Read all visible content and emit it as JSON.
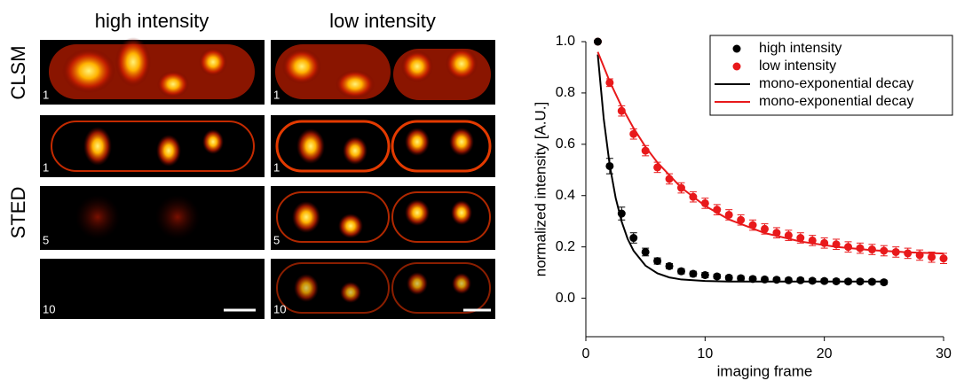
{
  "image_panel": {
    "columns": [
      "high intensity",
      "low intensity"
    ],
    "rows": [
      "CLSM",
      "STED"
    ],
    "frame_labels": [
      [
        "1",
        "1"
      ],
      [
        "1",
        "1"
      ],
      [
        "5",
        "5"
      ],
      [
        "10",
        "10"
      ]
    ]
  },
  "chart_data": {
    "type": "scatter",
    "xlabel": "imaging frame",
    "ylabel": "normalized intensity [A.U.]",
    "xlim": [
      0,
      30
    ],
    "ylim": [
      -0.15,
      1.0
    ],
    "xticks": [
      0,
      10,
      20,
      30
    ],
    "yticks": [
      {
        "value": 0,
        "label": "0.0"
      },
      {
        "value": 0.2,
        "label": "0.2"
      },
      {
        "value": 0.4,
        "label": "0.4"
      },
      {
        "value": 0.6,
        "label": "0.6"
      },
      {
        "value": 0.8,
        "label": "0.8"
      },
      {
        "value": 1,
        "label": "1.0"
      }
    ],
    "legend": "upper right",
    "series": [
      {
        "name": "high intensity",
        "color": "#000000",
        "mode": "markers",
        "x": [
          1,
          2,
          3,
          4,
          5,
          6,
          7,
          8,
          9,
          10,
          11,
          12,
          13,
          14,
          15,
          16,
          17,
          18,
          19,
          20,
          21,
          22,
          23,
          24,
          25
        ],
        "values": [
          1.0,
          0.515,
          0.33,
          0.235,
          0.18,
          0.145,
          0.125,
          0.105,
          0.095,
          0.09,
          0.085,
          0.08,
          0.078,
          0.075,
          0.073,
          0.072,
          0.07,
          0.07,
          0.068,
          0.067,
          0.066,
          0.065,
          0.065,
          0.064,
          0.062
        ],
        "errors": [
          0.0,
          0.03,
          0.025,
          0.02,
          0.015,
          0.012,
          0.01,
          0.01,
          0.01,
          0.01,
          0.008,
          0.008,
          0.008,
          0.008,
          0.008,
          0.008,
          0.008,
          0.008,
          0.008,
          0.008,
          0.008,
          0.008,
          0.008,
          0.008,
          0.008
        ]
      },
      {
        "name": "low intensity",
        "color": "#e8191b",
        "mode": "markers",
        "x": [
          1,
          2,
          3,
          4,
          5,
          6,
          7,
          8,
          9,
          10,
          11,
          12,
          13,
          14,
          15,
          16,
          17,
          18,
          19,
          20,
          21,
          22,
          23,
          24,
          25,
          26,
          27,
          28,
          29,
          30
        ],
        "values": [
          1.0,
          0.84,
          0.73,
          0.64,
          0.575,
          0.51,
          0.465,
          0.43,
          0.395,
          0.37,
          0.345,
          0.325,
          0.305,
          0.285,
          0.27,
          0.255,
          0.245,
          0.235,
          0.225,
          0.215,
          0.21,
          0.2,
          0.195,
          0.19,
          0.185,
          0.18,
          0.175,
          0.168,
          0.16,
          0.155
        ],
        "errors": [
          0.0,
          0.015,
          0.02,
          0.02,
          0.02,
          0.02,
          0.02,
          0.02,
          0.02,
          0.02,
          0.02,
          0.02,
          0.02,
          0.02,
          0.02,
          0.02,
          0.02,
          0.02,
          0.02,
          0.02,
          0.02,
          0.02,
          0.02,
          0.02,
          0.02,
          0.02,
          0.02,
          0.02,
          0.02,
          0.02
        ]
      },
      {
        "name": "mono-exponential decay",
        "color": "#000000",
        "mode": "line",
        "x": [
          1,
          1.5,
          2,
          2.5,
          3,
          3.5,
          4,
          5,
          6,
          7,
          8,
          10,
          12,
          15,
          20,
          25
        ],
        "values": [
          0.95,
          0.699,
          0.519,
          0.391,
          0.299,
          0.232,
          0.185,
          0.127,
          0.097,
          0.081,
          0.073,
          0.067,
          0.065,
          0.065,
          0.065,
          0.065
        ]
      },
      {
        "name": "mono-exponential decay",
        "color": "#e8191b",
        "mode": "line",
        "x": [
          1,
          2,
          3,
          4,
          5,
          6,
          8,
          10,
          12,
          15,
          18,
          21,
          24,
          27,
          30
        ],
        "values": [
          0.96,
          0.845,
          0.747,
          0.663,
          0.59,
          0.529,
          0.431,
          0.36,
          0.307,
          0.254,
          0.221,
          0.2,
          0.187,
          0.179,
          0.174
        ]
      }
    ]
  }
}
